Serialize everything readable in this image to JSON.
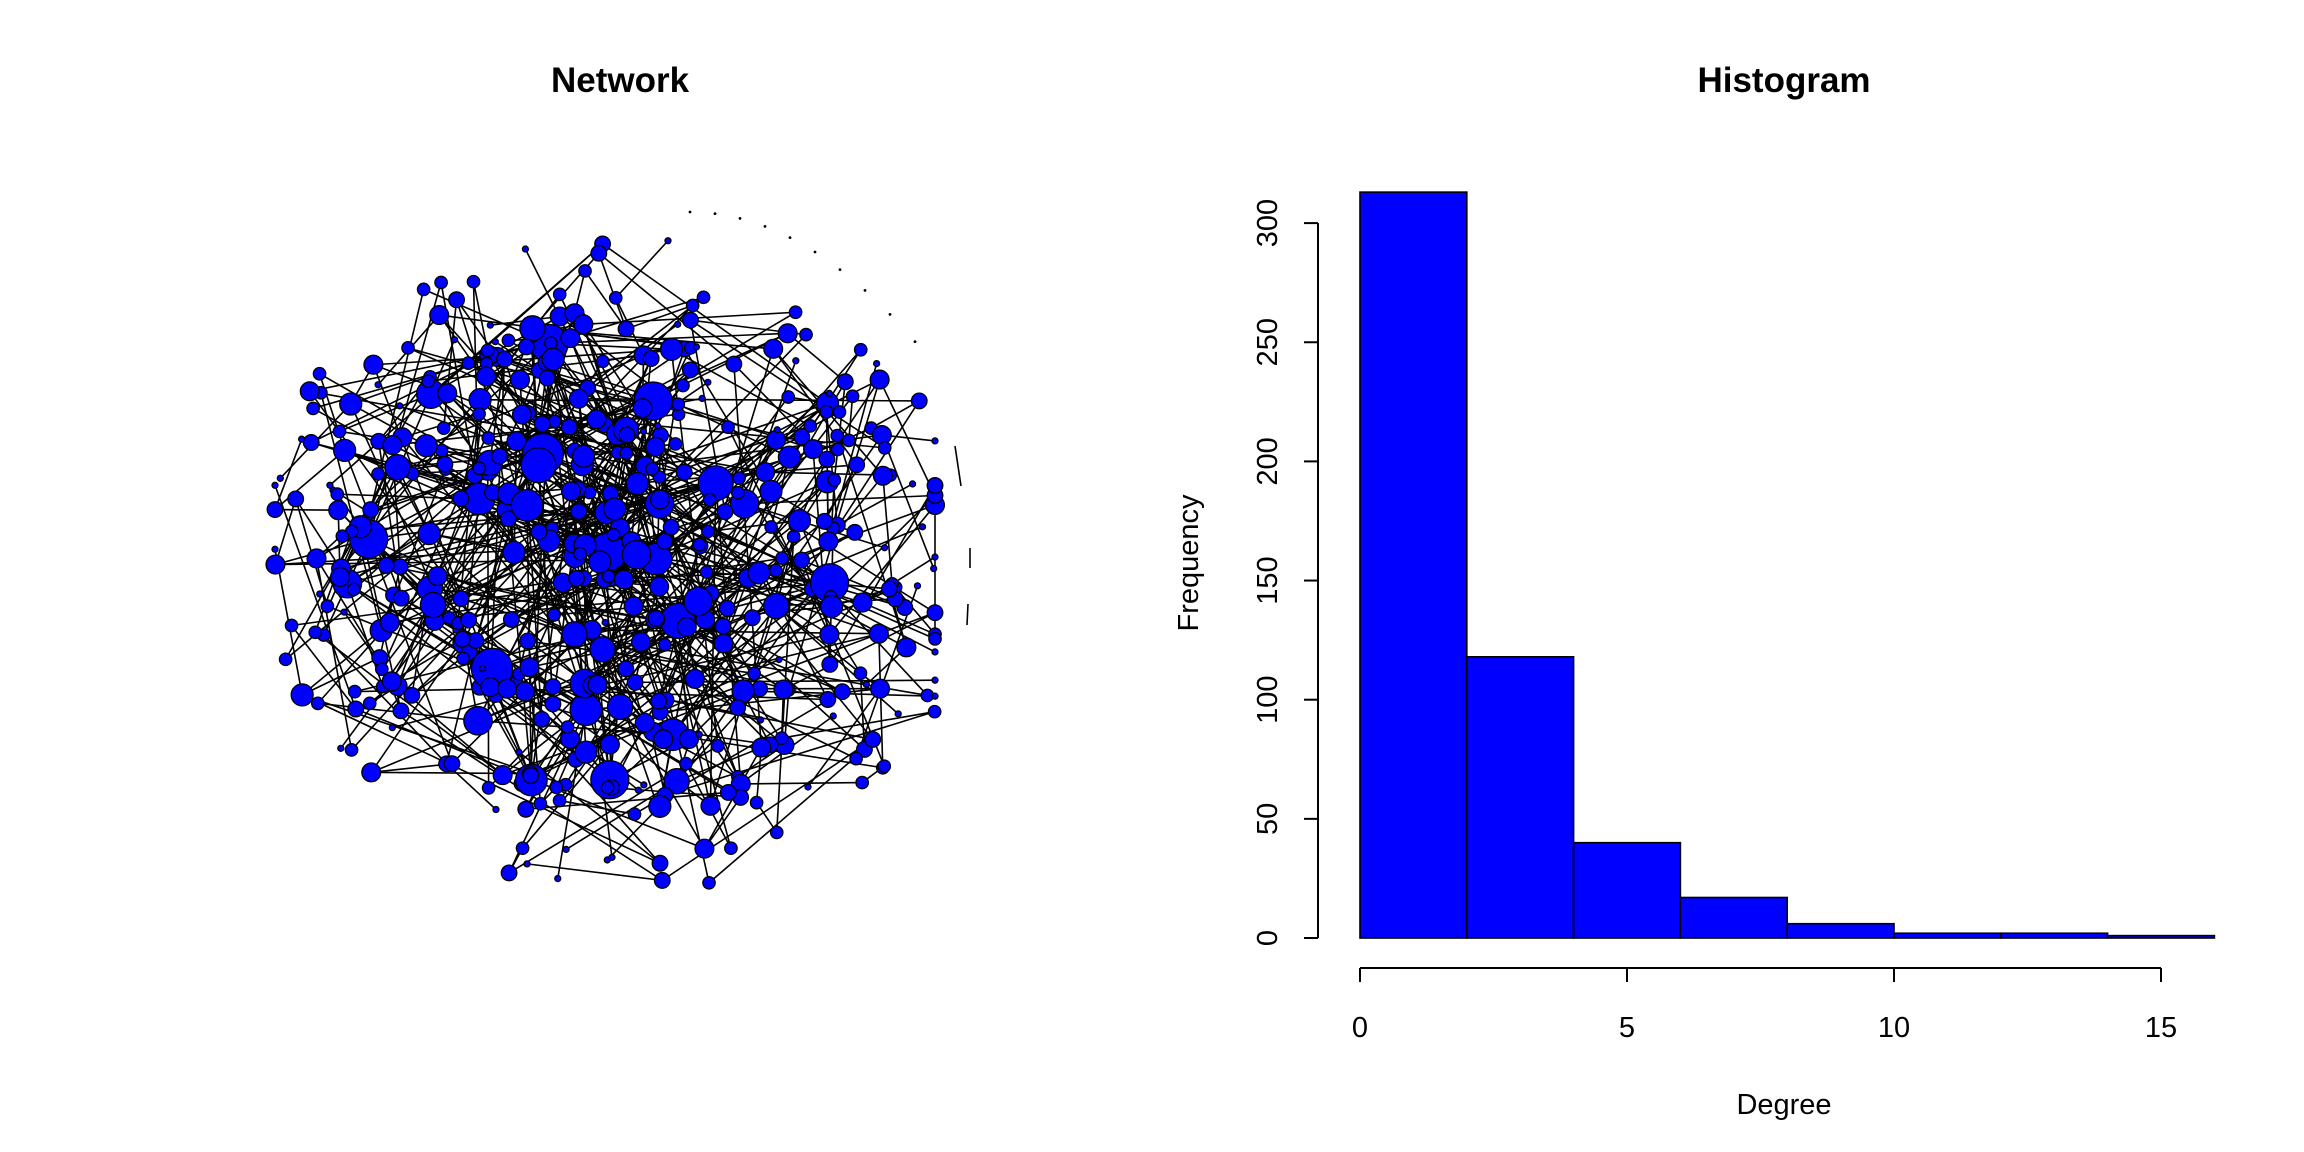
{
  "panels": {
    "network_title": "Network",
    "histogram_title": "Histogram"
  },
  "colors": {
    "node_fill": "#0000ff",
    "bar_fill": "#0000ff",
    "edge": "#000000",
    "background": "#ffffff"
  },
  "chart_data": [
    {
      "type": "network",
      "title": "Network",
      "node_color": "#0000ff",
      "edge_color": "#000000",
      "node_size_encodes": "degree",
      "layout": "force-directed cloud with a few isolated components on the right"
    },
    {
      "type": "bar",
      "subtype": "histogram",
      "title": "Histogram",
      "xlabel": "Degree",
      "ylabel": "Frequency",
      "bin_edges": [
        0,
        2,
        4,
        6,
        8,
        10,
        12,
        14,
        16
      ],
      "values": [
        313,
        118,
        40,
        17,
        6,
        2,
        2,
        1
      ],
      "xlim": [
        0,
        16
      ],
      "ylim": [
        0,
        313
      ],
      "x_ticks": [
        0,
        5,
        10,
        15
      ],
      "x_tick_labels": [
        "0",
        "5",
        "10",
        "15"
      ],
      "y_ticks": [
        0,
        50,
        100,
        150,
        200,
        250,
        300
      ],
      "y_tick_labels": [
        "0",
        "50",
        "100",
        "150",
        "200",
        "250",
        "300"
      ],
      "bar_color": "#0000ff",
      "grid": false,
      "legend": "none"
    }
  ]
}
